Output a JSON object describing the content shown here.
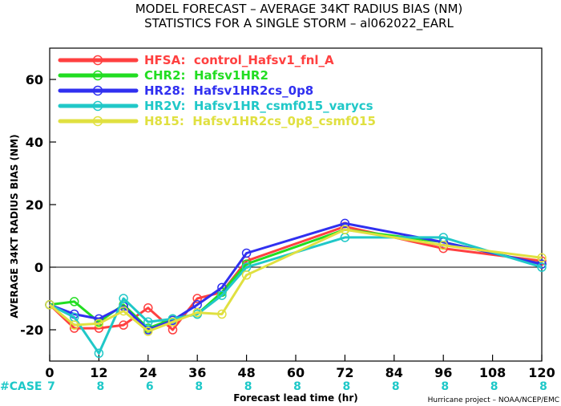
{
  "titles": {
    "line1": "MODEL FORECAST – AVERAGE 34KT RADIUS BIAS (NM)",
    "line2": "STATISTICS FOR A SINGLE STORM – al062022_EARL"
  },
  "credit": "Hurricane project – NOAA/NCEP/EMC",
  "case_label": "#CASE",
  "colors": {
    "zero_line": "#000000",
    "case_counts": "#1ec8c8"
  },
  "chart_data": {
    "type": "line",
    "title": "MODEL FORECAST – AVERAGE 34KT RADIUS BIAS (NM)",
    "subtitle": "STATISTICS FOR A SINGLE STORM – al062022_EARL",
    "xlabel": "Forecast lead time (hr)",
    "ylabel": "AVERAGE 34KT RADIUS BIAS (NM)",
    "xlim": [
      0,
      120
    ],
    "ylim": [
      -30,
      70
    ],
    "xticks": [
      0,
      12,
      24,
      36,
      48,
      60,
      72,
      84,
      96,
      108,
      120
    ],
    "yticks": [
      -20,
      0,
      20,
      40,
      60
    ],
    "grid": false,
    "legend_position": "top-left",
    "case_x": [
      0,
      12,
      24,
      36,
      48,
      60,
      72,
      84,
      96,
      108,
      120
    ],
    "case_counts": [
      "7",
      "8",
      "6",
      "8",
      "8",
      "8",
      "8",
      "8",
      "8",
      "8",
      "8"
    ],
    "series": [
      {
        "name": "HFSA:  control_Hafsv1_fnl_A",
        "color": "#ff4040",
        "x": [
          0,
          6,
          12,
          18,
          24,
          30,
          36,
          42,
          48,
          72,
          96,
          120
        ],
        "y": [
          -12,
          -19.5,
          -19.5,
          -18.5,
          -13,
          -20,
          -10,
          -8,
          2,
          13,
          6,
          2
        ]
      },
      {
        "name": "CHR2:  Hafsv1HR2",
        "color": "#22dd22",
        "x": [
          0,
          6,
          12,
          18,
          24,
          30,
          36,
          42,
          48,
          72,
          96,
          120
        ],
        "y": [
          -12,
          -11,
          -17.5,
          -12,
          -19.5,
          -16.5,
          -15,
          -8,
          1,
          12,
          8,
          1
        ]
      },
      {
        "name": "HR28:  Hafsv1HR2cs_0p8",
        "color": "#3030f0",
        "x": [
          0,
          6,
          12,
          18,
          24,
          30,
          36,
          42,
          48,
          72,
          96,
          120
        ],
        "y": [
          -12,
          -15,
          -16.5,
          -12.5,
          -20,
          -17,
          -12,
          -6.5,
          4.5,
          14,
          8,
          1
        ]
      },
      {
        "name": "HR2V:  Hafsv1HR_csmf015_varycs",
        "color": "#20c8c8",
        "x": [
          0,
          6,
          12,
          18,
          24,
          30,
          36,
          42,
          48,
          72,
          96,
          120
        ],
        "y": [
          -12,
          -16,
          -27.5,
          -10,
          -17.5,
          -16.5,
          -15,
          -9,
          0,
          9.5,
          9.5,
          0
        ]
      },
      {
        "name": "H815:  Hafsv1HR2cs_0p8_csmf015",
        "color": "#e0e040",
        "x": [
          0,
          6,
          12,
          18,
          24,
          30,
          36,
          42,
          48,
          72,
          96,
          120
        ],
        "y": [
          -12,
          -18.5,
          -18,
          -14,
          -20.5,
          -17.5,
          -14.5,
          -15,
          -2.5,
          12,
          7,
          3
        ]
      }
    ]
  }
}
